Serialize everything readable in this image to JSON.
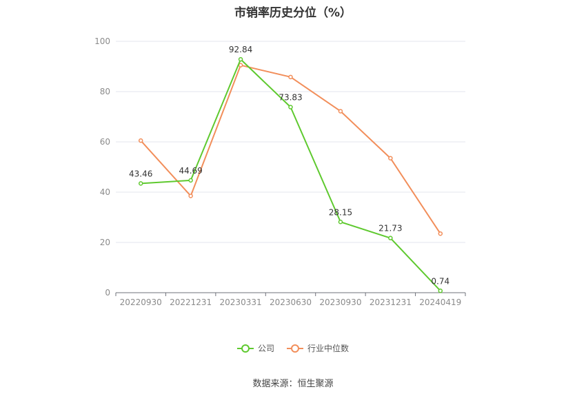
{
  "chart_data": {
    "type": "line",
    "title": "市销率历史分位（%）",
    "categories": [
      "20220930",
      "20221231",
      "20230331",
      "20230630",
      "20230930",
      "20231231",
      "20240419"
    ],
    "series": [
      {
        "name": "公司",
        "values": [
          43.46,
          44.69,
          92.84,
          73.83,
          28.15,
          21.73,
          0.74
        ],
        "color": "#5ec92e",
        "labels": [
          "43.46",
          "44.69",
          "92.84",
          "73.83",
          "28.15",
          "21.73",
          "0.74"
        ]
      },
      {
        "name": "行业中位数",
        "values": [
          60.5,
          38.5,
          90.5,
          85.8,
          72.2,
          53.5,
          23.5
        ],
        "color": "#f28e5a"
      }
    ],
    "ylim": [
      0,
      100
    ],
    "yticks": [
      0,
      20,
      40,
      60,
      80,
      100
    ],
    "grid": true,
    "legend": "bottom-center"
  },
  "source": "数据来源：恒生聚源"
}
